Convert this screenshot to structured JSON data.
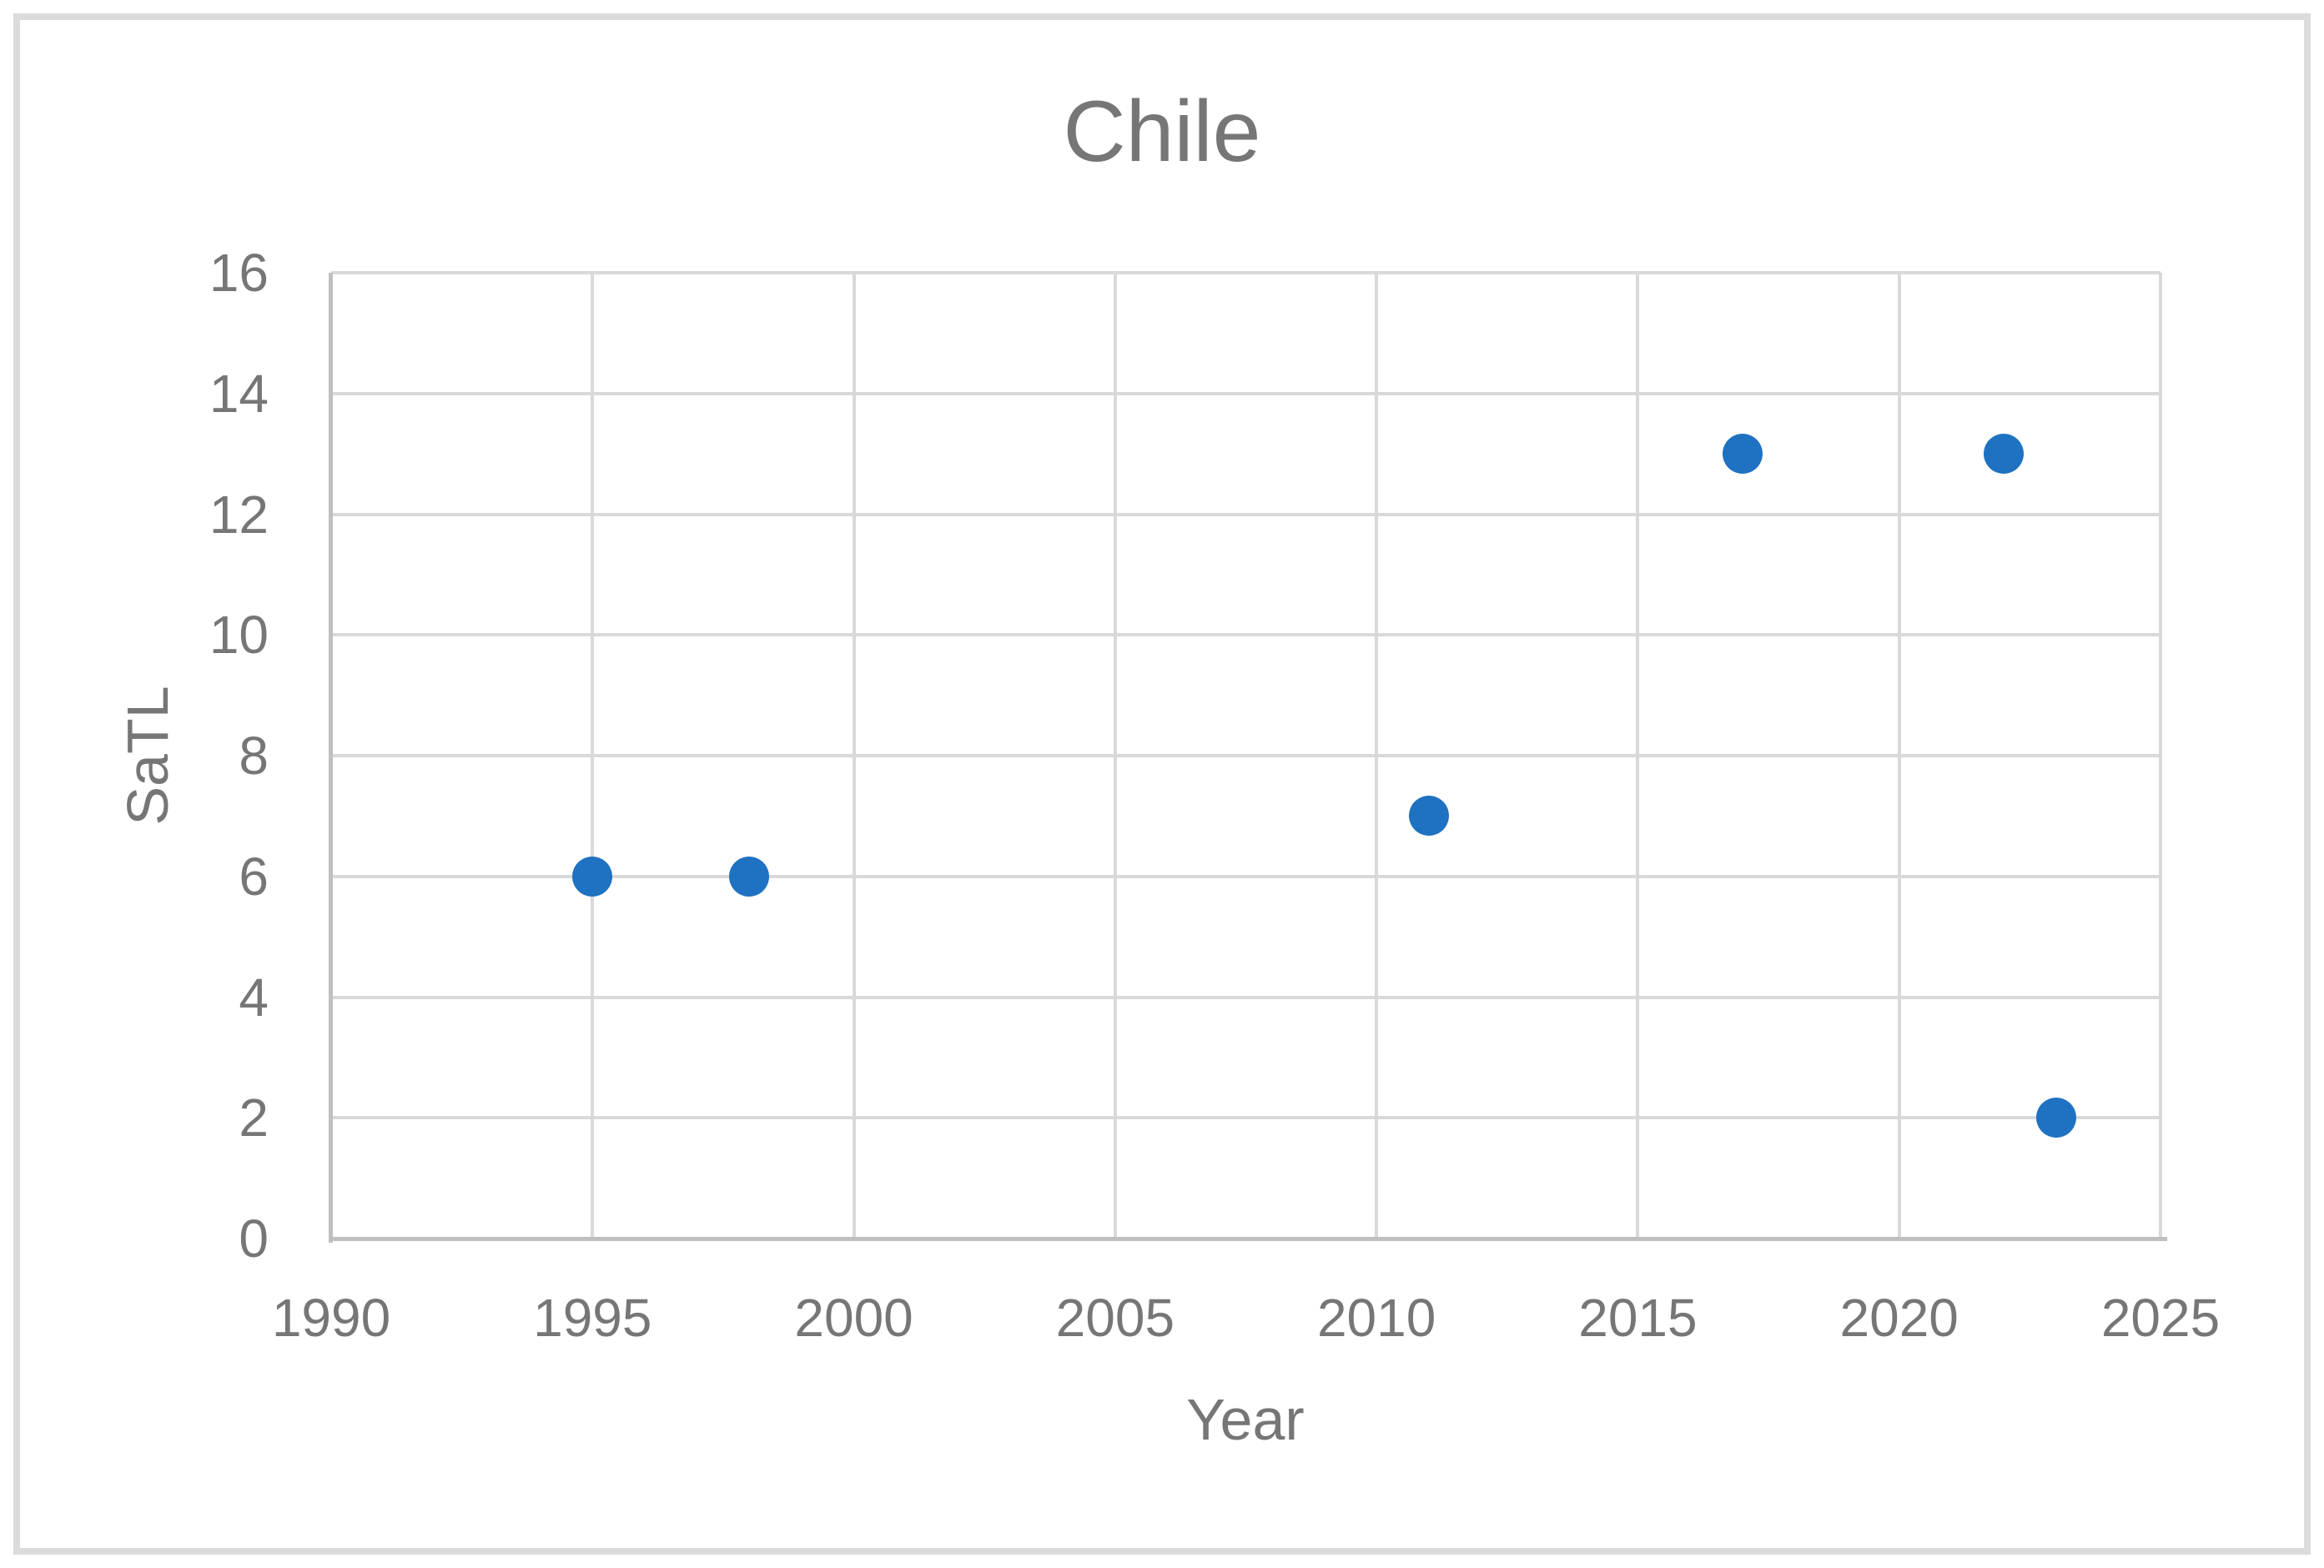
{
  "chart_data": {
    "type": "scatter",
    "title": "Chile",
    "xlabel": "Year",
    "ylabel": "SaTL",
    "xlim": [
      1990,
      2025
    ],
    "ylim": [
      0,
      16
    ],
    "x_ticks": [
      1990,
      1995,
      2000,
      2005,
      2010,
      2015,
      2020,
      2025
    ],
    "y_ticks": [
      0,
      2,
      4,
      6,
      8,
      10,
      12,
      14,
      16
    ],
    "grid": true,
    "legend": "none",
    "points": [
      {
        "x": 1995,
        "y": 6
      },
      {
        "x": 1998,
        "y": 6
      },
      {
        "x": 2011,
        "y": 7
      },
      {
        "x": 2017,
        "y": 13
      },
      {
        "x": 2022,
        "y": 13
      },
      {
        "x": 2023,
        "y": 2
      }
    ]
  },
  "colors": {
    "marker": "#1F72C2",
    "gridline": "#D9D9D9",
    "axis_line": "#BFBFBF",
    "text": "#767676",
    "border": "#DBDBDB",
    "background": "#FFFFFF"
  }
}
